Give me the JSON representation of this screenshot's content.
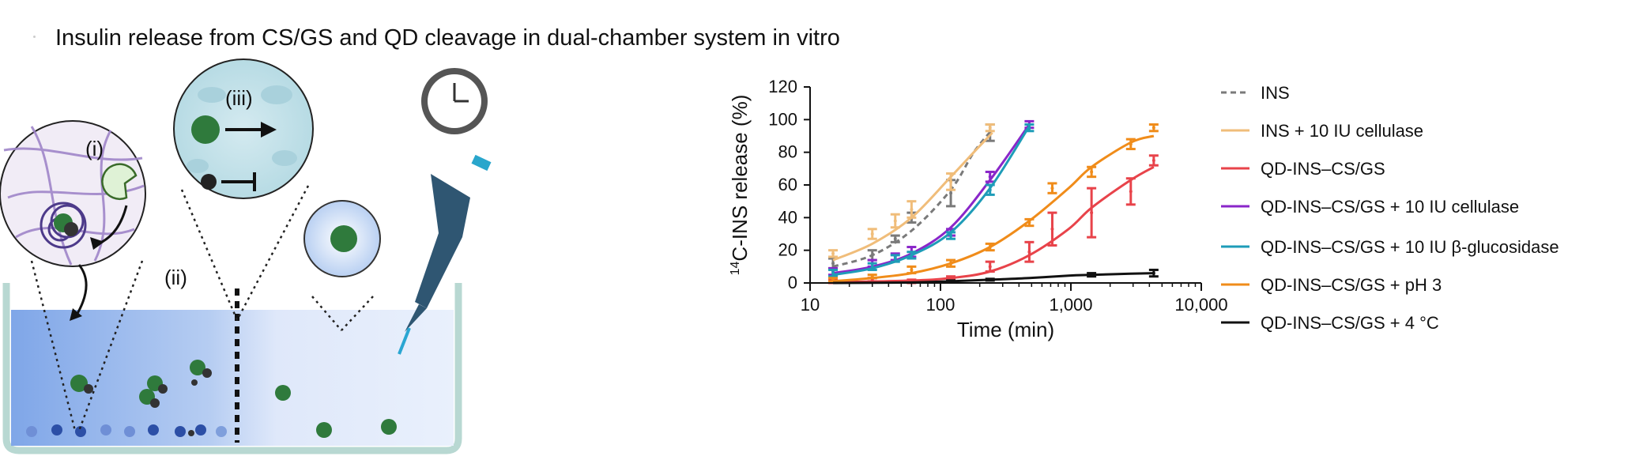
{
  "title": "Insulin release from CS/GS and QD cleavage in dual-chamber system in vitro",
  "illustration": {
    "labels": [
      "(i)",
      "(ii)",
      "(iii)"
    ],
    "icons": [
      "clock-icon",
      "pipette-icon",
      "dual-chamber-icon",
      "insulin-molecule-icon",
      "quantum-dot-icon",
      "enzyme-icon"
    ]
  },
  "chart_data": {
    "type": "line",
    "xscale": "log",
    "xlabel": "Time (min)",
    "ylabel": "14C-INS release (%)",
    "ylabel_sup": "14",
    "ylabel_rest": "C-INS release (%)",
    "xlim": [
      10,
      10000
    ],
    "ylim": [
      0,
      120
    ],
    "xticks": [
      10,
      100,
      1000,
      10000
    ],
    "xtick_labels": [
      "10",
      "100",
      "1,000",
      "10,000"
    ],
    "yticks": [
      0,
      20,
      40,
      60,
      80,
      100,
      120
    ],
    "ytick_labels": [
      "0",
      "20",
      "40",
      "60",
      "80",
      "100",
      "120"
    ],
    "grid": false,
    "legend_position": "right",
    "series": [
      {
        "name": "INS",
        "color": "#7a7a7a",
        "dashed": true,
        "x": [
          15,
          30,
          45,
          60,
          120,
          240
        ],
        "y": [
          12,
          17,
          27,
          40,
          55,
          92
        ],
        "err": [
          3,
          3,
          2,
          3,
          8,
          5
        ],
        "fit": [
          [
            15,
            10
          ],
          [
            30,
            17
          ],
          [
            60,
            32
          ],
          [
            120,
            57
          ],
          [
            180,
            80
          ],
          [
            250,
            94
          ]
        ]
      },
      {
        "name": "INS + 10 IU cellulase",
        "color": "#f0bd7a",
        "dashed": false,
        "x": [
          15,
          30,
          45,
          60,
          120,
          240
        ],
        "y": [
          18,
          30,
          38,
          45,
          62,
          95
        ],
        "err": [
          2,
          3,
          4,
          5,
          5,
          2
        ],
        "fit": [
          [
            15,
            14
          ],
          [
            30,
            24
          ],
          [
            60,
            40
          ],
          [
            120,
            65
          ],
          [
            180,
            80
          ],
          [
            250,
            92
          ]
        ]
      },
      {
        "name": "QD-INS–CS/GS",
        "color": "#e8434a",
        "dashed": false,
        "x": [
          15,
          30,
          60,
          120,
          240,
          480,
          720,
          1440,
          2880,
          4320
        ],
        "y": [
          1,
          2,
          1,
          3,
          10,
          19,
          33,
          43,
          56,
          75
        ],
        "err": [
          1,
          1,
          1,
          1,
          3,
          6,
          10,
          15,
          8,
          3
        ],
        "fit": [
          [
            15,
            0.5
          ],
          [
            60,
            1.5
          ],
          [
            120,
            3
          ],
          [
            240,
            7
          ],
          [
            480,
            17
          ],
          [
            960,
            33
          ],
          [
            1440,
            46
          ],
          [
            2880,
            63
          ],
          [
            4320,
            71
          ]
        ]
      },
      {
        "name": "QD-INS–CS/GS + 10 IU cellulase",
        "color": "#8a26c9",
        "dashed": false,
        "x": [
          15,
          30,
          45,
          60,
          120,
          240,
          480
        ],
        "y": [
          7,
          12,
          16,
          19,
          31,
          65,
          97
        ],
        "err": [
          2,
          2,
          2,
          3,
          2,
          3,
          2
        ],
        "fit": [
          [
            15,
            6
          ],
          [
            30,
            10
          ],
          [
            60,
            18
          ],
          [
            120,
            34
          ],
          [
            240,
            63
          ],
          [
            480,
            97
          ]
        ]
      },
      {
        "name": "QD-INS–CS/GS + 10 IU β-glucosidase",
        "color": "#1e9cb8",
        "dashed": false,
        "x": [
          15,
          30,
          45,
          60,
          120,
          240,
          480
        ],
        "y": [
          6,
          10,
          15,
          17,
          29,
          57,
          95
        ],
        "err": [
          2,
          2,
          2,
          2,
          2,
          3,
          2
        ],
        "fit": [
          [
            15,
            5
          ],
          [
            30,
            9
          ],
          [
            60,
            17
          ],
          [
            120,
            31
          ],
          [
            240,
            58
          ],
          [
            480,
            96
          ]
        ]
      },
      {
        "name": "QD-INS–CS/GS + pH 3",
        "color": "#f08c1a",
        "dashed": false,
        "x": [
          15,
          30,
          60,
          120,
          240,
          480,
          720,
          1440,
          2880,
          4320
        ],
        "y": [
          2,
          4,
          8,
          12,
          22,
          37,
          58,
          68,
          85,
          95
        ],
        "err": [
          1,
          1,
          2,
          2,
          2,
          2,
          3,
          3,
          3,
          2
        ],
        "fit": [
          [
            15,
            1
          ],
          [
            30,
            3
          ],
          [
            60,
            6
          ],
          [
            120,
            12
          ],
          [
            240,
            22
          ],
          [
            480,
            38
          ],
          [
            960,
            58
          ],
          [
            1440,
            71
          ],
          [
            2880,
            86
          ],
          [
            4320,
            90
          ]
        ]
      },
      {
        "name": "QD-INS–CS/GS + 4 °C",
        "color": "#111111",
        "dashed": false,
        "x": [
          120,
          240,
          1440,
          4320
        ],
        "y": [
          1,
          2,
          5,
          6
        ],
        "err": [
          0.5,
          0.5,
          1,
          2
        ],
        "fit": [
          [
            15,
            0
          ],
          [
            60,
            0.3
          ],
          [
            120,
            1
          ],
          [
            240,
            2
          ],
          [
            480,
            3
          ],
          [
            960,
            4.5
          ],
          [
            1440,
            5
          ],
          [
            2880,
            5.7
          ],
          [
            4320,
            6
          ]
        ]
      }
    ]
  }
}
